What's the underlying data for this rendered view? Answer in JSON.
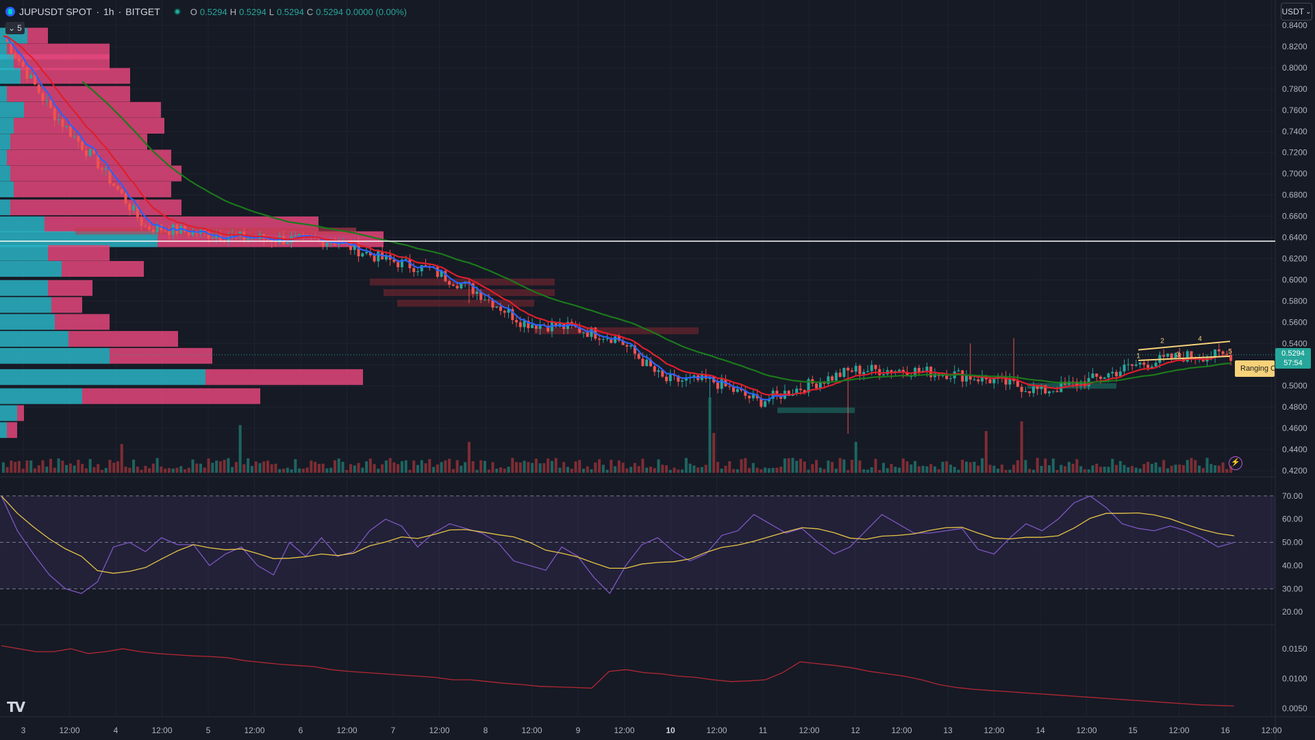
{
  "header": {
    "symbol": "JUPUSDT SPOT",
    "separator1": "·",
    "interval": "1h",
    "separator2": "·",
    "exchange": "BITGET",
    "ohlc": {
      "o_label": "O",
      "o_value": "0.5294",
      "h_label": "H",
      "h_value": "0.5294",
      "l_label": "L",
      "l_value": "0.5294",
      "c_label": "C",
      "c_value": "0.5294",
      "change": "0.0000 (0.00%)"
    }
  },
  "collapse_badge": {
    "icon": "chevron-down-icon",
    "count": "5"
  },
  "currency_button": {
    "label": "USDT"
  },
  "last_price": {
    "price": "0.5294",
    "countdown": "57:54"
  },
  "ranging_label": {
    "text": "Ranging C"
  },
  "price_axis": [
    "0.8400",
    "0.8200",
    "0.8000",
    "0.7800",
    "0.7600",
    "0.7400",
    "0.7200",
    "0.7000",
    "0.6800",
    "0.6600",
    "0.6400",
    "0.6200",
    "0.6000",
    "0.5800",
    "0.5600",
    "0.5400",
    "0.5200",
    "0.5000",
    "0.4800",
    "0.4600",
    "0.4400",
    "0.4200"
  ],
  "rsi_axis": [
    "70.00",
    "60.00",
    "50.00",
    "40.00",
    "30.00",
    "20.00"
  ],
  "lower_axis": [
    "0.0150",
    "0.0100",
    "0.0050"
  ],
  "time_axis": [
    "3",
    "12:00",
    "4",
    "12:00",
    "5",
    "12:00",
    "6",
    "12:00",
    "7",
    "12:00",
    "8",
    "12:00",
    "9",
    "12:00",
    "10",
    "12:00",
    "11",
    "12:00",
    "12",
    "12:00",
    "13",
    "12:00",
    "14",
    "12:00",
    "15",
    "12:00",
    "16",
    "12:00"
  ],
  "wave_labels": [
    "2",
    "4",
    "1",
    "3",
    "5"
  ],
  "colors": {
    "background": "#161a25",
    "bull": "#26a69a",
    "bear": "#ef5350",
    "ema_fast": "#2962ff",
    "ema_mid": "#e01e2b",
    "ema_slow": "#1b7a1b",
    "rsi_line": "#7e57c2",
    "rsi_ma": "#e8c547",
    "lower_line": "#b22833",
    "horizontal_line": "#ffffff"
  },
  "chart_data": {
    "type": "candlestick",
    "symbol": "JUPUSDT",
    "timeframe": "1h",
    "close_series": {
      "x": [
        "3",
        "12:00",
        "4",
        "12:00",
        "5",
        "12:00",
        "6",
        "12:00",
        "7",
        "12:00",
        "8",
        "12:00",
        "9",
        "12:00",
        "10",
        "12:00",
        "11",
        "12:00",
        "12",
        "12:00",
        "13",
        "12:00",
        "14",
        "12:00",
        "15",
        "12:00",
        "16"
      ],
      "values": [
        0.83,
        0.76,
        0.71,
        0.65,
        0.645,
        0.64,
        0.638,
        0.637,
        0.62,
        0.61,
        0.59,
        0.56,
        0.555,
        0.545,
        0.505,
        0.505,
        0.485,
        0.5,
        0.515,
        0.515,
        0.512,
        0.505,
        0.495,
        0.505,
        0.52,
        0.528,
        0.529
      ]
    },
    "ylim": [
      0.42,
      0.84
    ],
    "horizontal_level": 0.6365,
    "rsi": {
      "ylim": [
        20,
        70
      ],
      "bands": [
        30,
        50,
        70
      ],
      "values": [
        70,
        55,
        45,
        36,
        30,
        28,
        33,
        48,
        50,
        46,
        52,
        49,
        49,
        40,
        45,
        48,
        40,
        36,
        50,
        44,
        52,
        44,
        46,
        55,
        60,
        57,
        48,
        54,
        58,
        56,
        54,
        50,
        42,
        40,
        38,
        48,
        44,
        35,
        28,
        40,
        49,
        52,
        46,
        42,
        45,
        53,
        55,
        62,
        58,
        54,
        56,
        50,
        45,
        48,
        55,
        62,
        58,
        54,
        54,
        55,
        56,
        47,
        45,
        52,
        58,
        55,
        60,
        67,
        70,
        65,
        58,
        56,
        55,
        57,
        55,
        52,
        48,
        50
      ]
    },
    "lower_indicator": {
      "ylim": [
        0.005,
        0.017
      ],
      "values": [
        0.0155,
        0.015,
        0.0145,
        0.0145,
        0.015,
        0.0142,
        0.0145,
        0.015,
        0.0145,
        0.0142,
        0.014,
        0.0138,
        0.0137,
        0.0135,
        0.013,
        0.0127,
        0.0124,
        0.0122,
        0.012,
        0.0115,
        0.0112,
        0.011,
        0.0108,
        0.0106,
        0.0104,
        0.0102,
        0.0098,
        0.0098,
        0.0095,
        0.0092,
        0.009,
        0.0087,
        0.0086,
        0.0085,
        0.0084,
        0.0112,
        0.0115,
        0.011,
        0.0108,
        0.0104,
        0.0102,
        0.0098,
        0.0095,
        0.0096,
        0.0098,
        0.011,
        0.0128,
        0.0125,
        0.0122,
        0.0118,
        0.0112,
        0.0108,
        0.0104,
        0.0098,
        0.009,
        0.0085,
        0.0082,
        0.008,
        0.0078,
        0.0076,
        0.0074,
        0.0072,
        0.007,
        0.0068,
        0.0066,
        0.0064,
        0.0062,
        0.006,
        0.0058,
        0.0056,
        0.0055,
        0.0054
      ]
    }
  }
}
